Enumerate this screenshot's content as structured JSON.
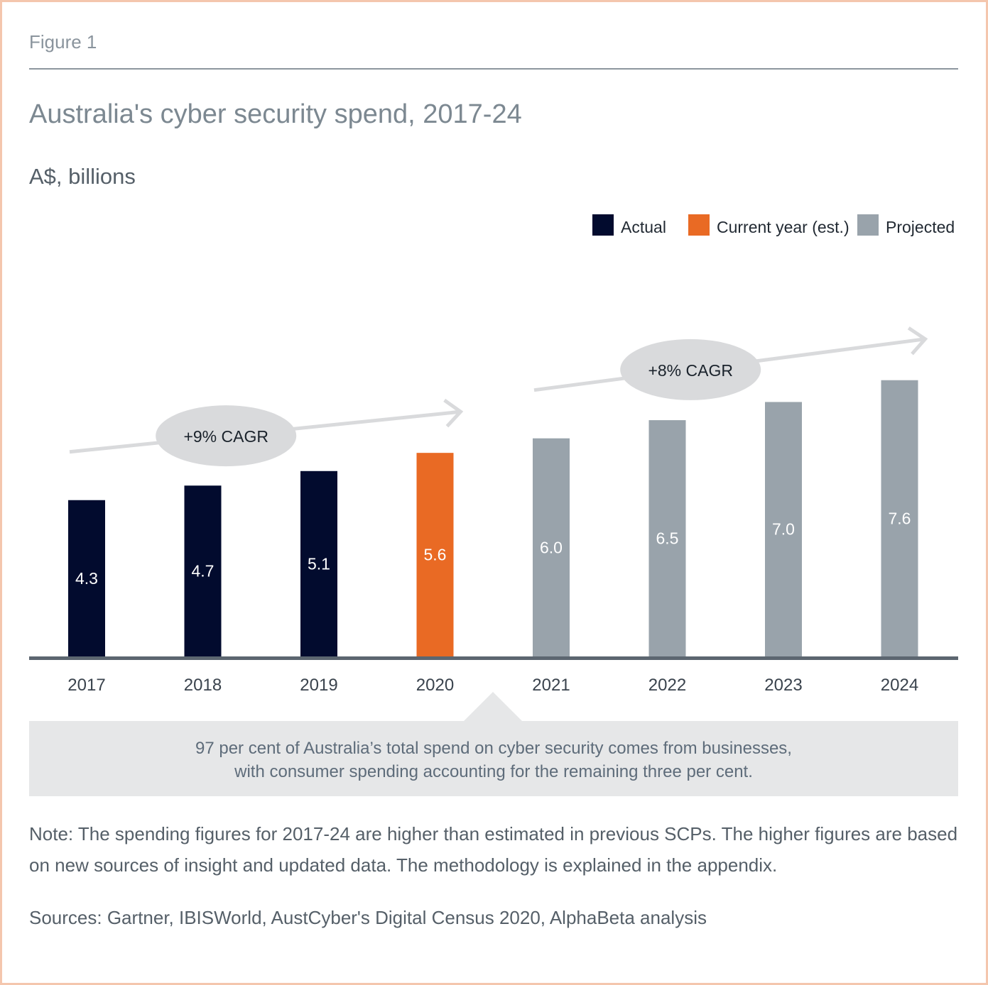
{
  "figure_label": "Figure 1",
  "callout": {
    "line1": "97 per cent of Australia’s total spend on cyber security comes from businesses,",
    "line2": "with consumer spending accounting for the remaining three per cent."
  },
  "note": "Note: The spending figures for 2017-24 are higher than estimated in previous SCPs. The higher figures are based on new sources of insight and updated data. The methodology is explained in the appendix.",
  "sources": "Sources: Gartner, IBISWorld, AustCyber's Digital Census 2020, AlphaBeta analysis",
  "colors": {
    "actual": "#020b2e",
    "current": "#e96a24",
    "projected": "#99a3ab",
    "axis": "#5c6670",
    "annotation_fill": "#d9dadc",
    "annotation_line": "#d9dadc"
  },
  "chart_data": {
    "type": "bar",
    "title": "Australia's cyber security spend, 2017-24",
    "subtitle": "A$, billions",
    "categories": [
      "2017",
      "2018",
      "2019",
      "2020",
      "2021",
      "2022",
      "2023",
      "2024"
    ],
    "values": [
      4.3,
      4.7,
      5.1,
      5.6,
      6.0,
      6.5,
      7.0,
      7.6
    ],
    "value_labels": [
      "4.3",
      "4.7",
      "5.1",
      "5.6",
      "6.0",
      "6.5",
      "7.0",
      "7.6"
    ],
    "groups": [
      "actual",
      "actual",
      "actual",
      "current",
      "projected",
      "projected",
      "projected",
      "projected"
    ],
    "legend": [
      {
        "key": "actual",
        "label": "Actual"
      },
      {
        "key": "current",
        "label": "Current year (est.)"
      },
      {
        "key": "projected",
        "label": "Projected"
      }
    ],
    "legend_position": "top-right",
    "ylim": [
      0,
      8.2
    ],
    "grid": false,
    "annotations": [
      {
        "label": "+9% CAGR",
        "from_category": "2017",
        "to_category": "2020"
      },
      {
        "label": "+8% CAGR",
        "from_category": "2021",
        "to_category": "2024"
      }
    ]
  }
}
